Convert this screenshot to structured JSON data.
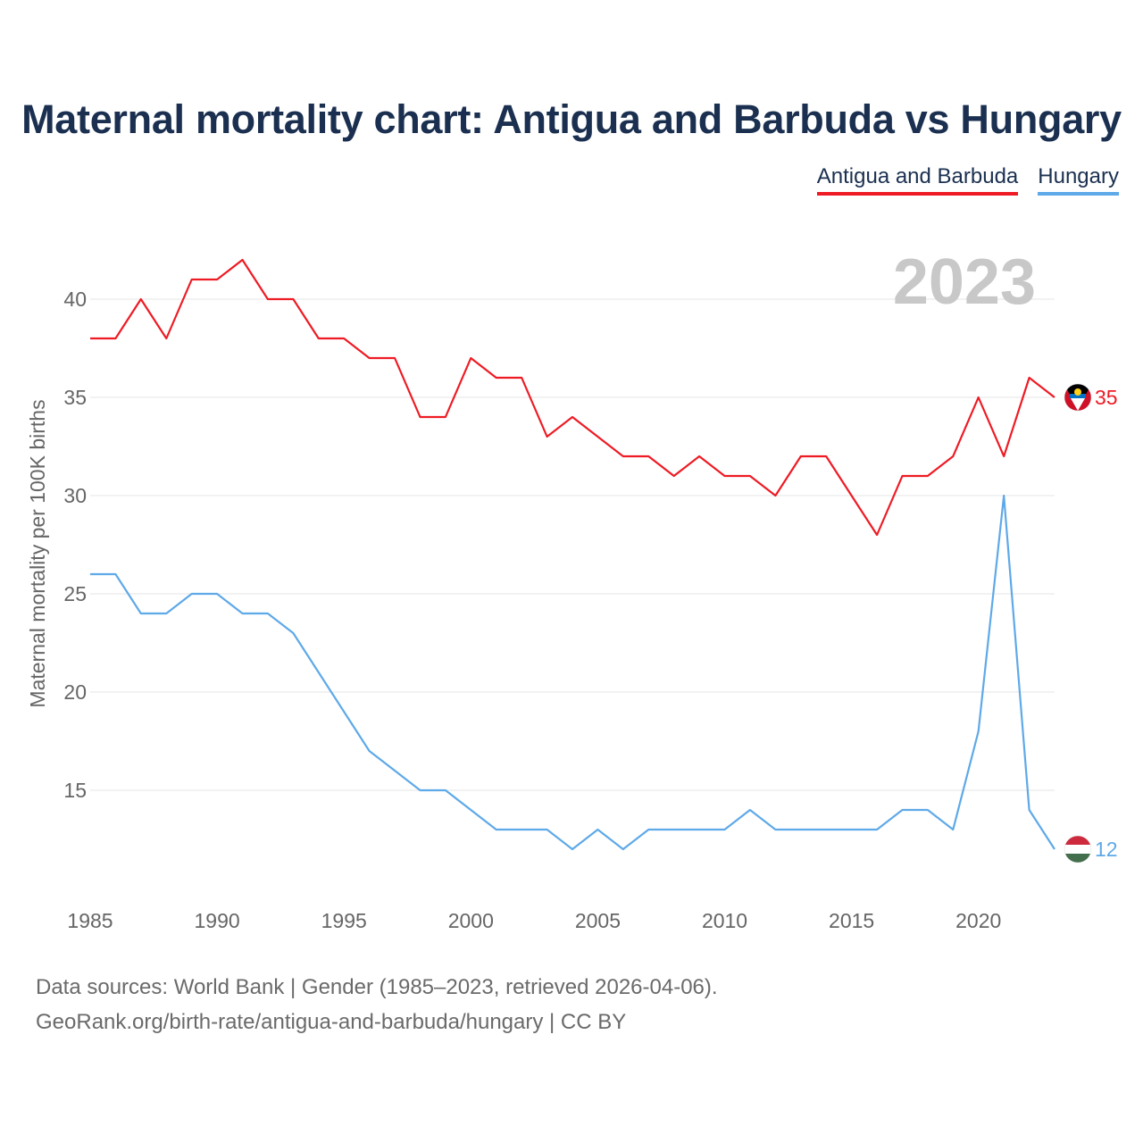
{
  "title": "Maternal mortality chart: Antigua and Barbuda vs Hungary",
  "legend": [
    "Antigua and Barbuda",
    "Hungary"
  ],
  "footer": {
    "line1": "Data sources: World Bank | Gender (1985–2023, retrieved 2026-04-06).",
    "line2": "GeoRank.org/birth-rate/antigua-and-barbuda/hungary | CC BY"
  },
  "chart_data": {
    "type": "line",
    "title": "Maternal mortality chart: Antigua and Barbuda vs Hungary",
    "ylabel": "Maternal mortality per 100K births",
    "xlabel": "",
    "year_watermark": "2023",
    "x": [
      1985,
      1986,
      1987,
      1988,
      1989,
      1990,
      1991,
      1992,
      1993,
      1994,
      1995,
      1996,
      1997,
      1998,
      1999,
      2000,
      2001,
      2002,
      2003,
      2004,
      2005,
      2006,
      2007,
      2008,
      2009,
      2010,
      2011,
      2012,
      2013,
      2014,
      2015,
      2016,
      2017,
      2018,
      2019,
      2020,
      2021,
      2022,
      2023
    ],
    "xticks": [
      1985,
      1990,
      1995,
      2000,
      2005,
      2010,
      2015,
      2020
    ],
    "yticks": [
      15,
      20,
      25,
      30,
      35,
      40
    ],
    "ylim": [
      10,
      44
    ],
    "xlim": [
      1985,
      2023
    ],
    "series": [
      {
        "name": "Antigua and Barbuda",
        "color": "#ee1b24",
        "end_label": "35",
        "values": [
          38,
          38,
          40,
          38,
          41,
          41,
          42,
          40,
          40,
          38,
          38,
          37,
          37,
          34,
          34,
          37,
          36,
          36,
          33,
          34,
          33,
          32,
          32,
          31,
          32,
          31,
          31,
          30,
          32,
          32,
          30,
          28,
          31,
          31,
          32,
          35,
          32,
          36,
          35
        ]
      },
      {
        "name": "Hungary",
        "color": "#5ea9e8",
        "end_label": "12",
        "values": [
          26,
          26,
          24,
          24,
          25,
          25,
          24,
          24,
          23,
          21,
          19,
          17,
          16,
          15,
          15,
          14,
          13,
          13,
          13,
          12,
          13,
          12,
          13,
          13,
          13,
          13,
          14,
          13,
          13,
          13,
          13,
          13,
          14,
          14,
          13,
          18,
          30,
          14,
          12
        ]
      }
    ]
  }
}
